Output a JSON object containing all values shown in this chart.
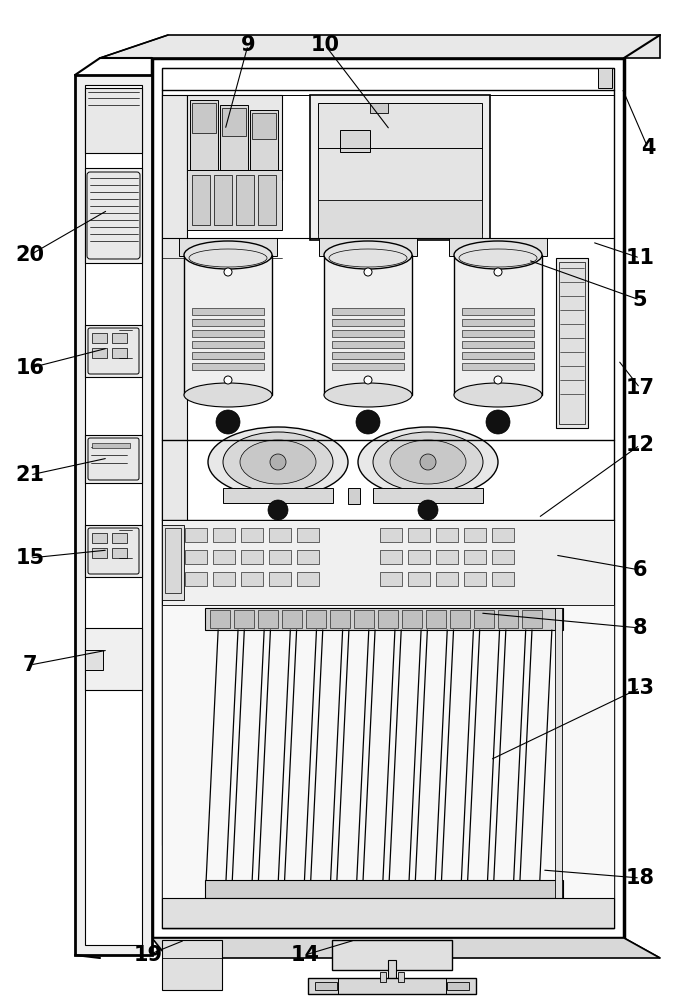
{
  "figsize": [
    6.82,
    10.0
  ],
  "dpi": 100,
  "bg_color": "#ffffff",
  "lc": "#000000",
  "lw": 1.0,
  "label_fontsize": 15,
  "leaders": [
    [
      "4",
      648,
      148,
      622,
      88
    ],
    [
      "5",
      640,
      300,
      528,
      260
    ],
    [
      "6",
      640,
      570,
      555,
      555
    ],
    [
      "7",
      30,
      665,
      108,
      650
    ],
    [
      "8",
      640,
      628,
      480,
      613
    ],
    [
      "9",
      248,
      45,
      225,
      130
    ],
    [
      "10",
      325,
      45,
      390,
      130
    ],
    [
      "11",
      640,
      258,
      592,
      242
    ],
    [
      "12",
      640,
      445,
      538,
      518
    ],
    [
      "13",
      640,
      688,
      490,
      760
    ],
    [
      "14",
      305,
      955,
      355,
      940
    ],
    [
      "15",
      30,
      558,
      108,
      550
    ],
    [
      "16",
      30,
      368,
      108,
      348
    ],
    [
      "17",
      640,
      388,
      618,
      360
    ],
    [
      "18",
      640,
      878,
      542,
      870
    ],
    [
      "19",
      148,
      955,
      185,
      940
    ],
    [
      "20",
      30,
      255,
      108,
      210
    ],
    [
      "21",
      30,
      475,
      108,
      458
    ]
  ]
}
